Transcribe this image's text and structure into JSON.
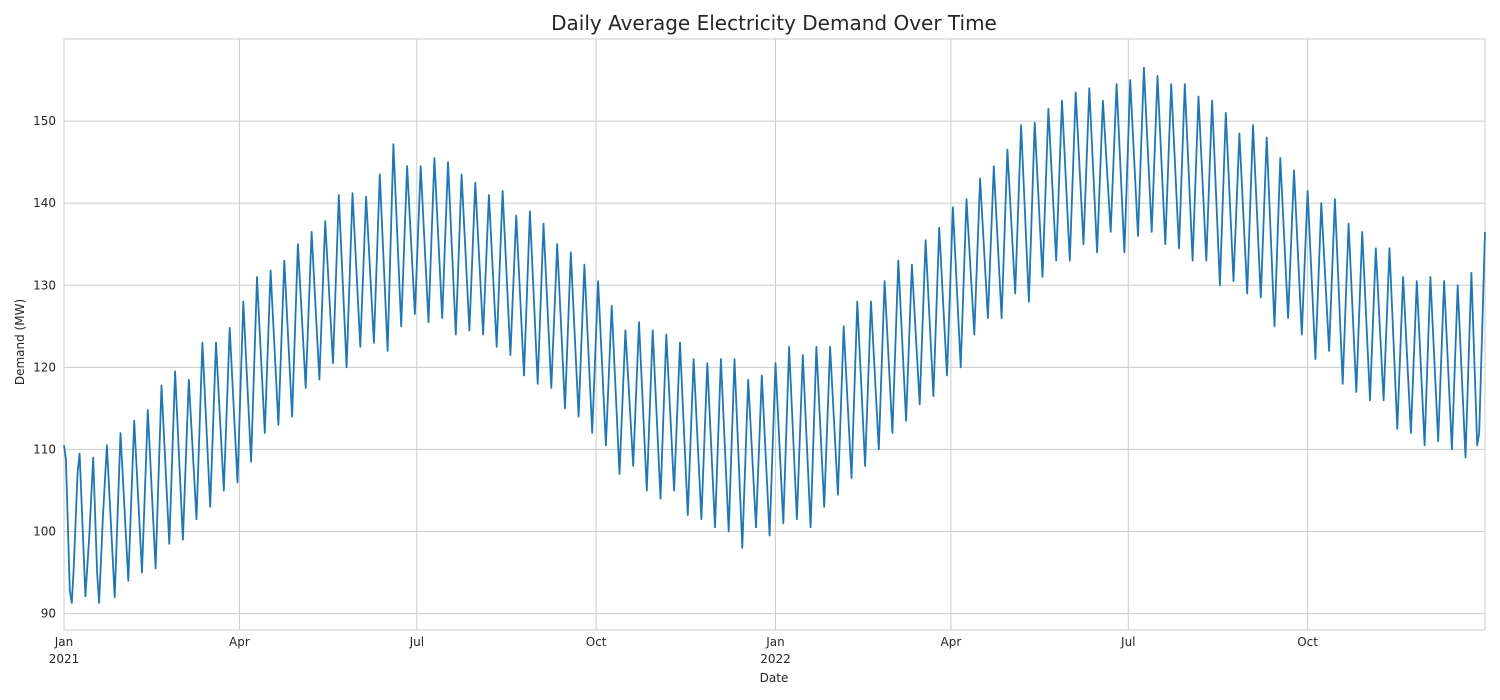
{
  "chart_data": {
    "type": "line",
    "title": "Daily Average Electricity Demand Over Time",
    "xlabel": "Date",
    "ylabel": "Demand (MW)",
    "ylim": [
      88,
      160
    ],
    "xlim": [
      "2021-01-01",
      "2022-12-31"
    ],
    "grid": true,
    "y_ticks": [
      90,
      100,
      110,
      120,
      130,
      140,
      150
    ],
    "x_ticks": [
      {
        "date": "2021-01-01",
        "label": "Jan",
        "sublabel": "2021"
      },
      {
        "date": "2021-04-01",
        "label": "Apr",
        "sublabel": ""
      },
      {
        "date": "2021-07-01",
        "label": "Jul",
        "sublabel": ""
      },
      {
        "date": "2021-10-01",
        "label": "Oct",
        "sublabel": ""
      },
      {
        "date": "2022-01-01",
        "label": "Jan",
        "sublabel": "2022"
      },
      {
        "date": "2022-04-01",
        "label": "Apr",
        "sublabel": ""
      },
      {
        "date": "2022-07-01",
        "label": "Jul",
        "sublabel": ""
      },
      {
        "date": "2022-10-01",
        "label": "Oct",
        "sublabel": ""
      }
    ],
    "series": [
      {
        "color": "#1f77b4",
        "points": [
          [
            "2021-01-01",
            110.5
          ],
          [
            "2021-01-02",
            108.8
          ],
          [
            "2021-01-04",
            92.8
          ],
          [
            "2021-01-05",
            91.3
          ],
          [
            "2021-01-06",
            95.5
          ],
          [
            "2021-01-08",
            107.2
          ],
          [
            "2021-01-09",
            109.5
          ],
          [
            "2021-01-12",
            92.1
          ],
          [
            "2021-01-14",
            99.5
          ],
          [
            "2021-01-16",
            109.0
          ],
          [
            "2021-01-18",
            95.0
          ],
          [
            "2021-01-19",
            91.3
          ],
          [
            "2021-01-21",
            102.0
          ],
          [
            "2021-01-23",
            110.5
          ],
          [
            "2021-01-27",
            92.0
          ],
          [
            "2021-01-30",
            112.0
          ],
          [
            "2021-02-03",
            94.0
          ],
          [
            "2021-02-06",
            113.5
          ],
          [
            "2021-02-10",
            95.0
          ],
          [
            "2021-02-13",
            114.8
          ],
          [
            "2021-02-17",
            95.5
          ],
          [
            "2021-02-20",
            117.8
          ],
          [
            "2021-02-24",
            98.5
          ],
          [
            "2021-02-27",
            119.5
          ],
          [
            "2021-03-03",
            99.0
          ],
          [
            "2021-03-06",
            118.5
          ],
          [
            "2021-03-10",
            101.5
          ],
          [
            "2021-03-13",
            123.0
          ],
          [
            "2021-03-17",
            103.0
          ],
          [
            "2021-03-20",
            123.0
          ],
          [
            "2021-03-24",
            105.0
          ],
          [
            "2021-03-27",
            124.8
          ],
          [
            "2021-03-31",
            106.0
          ],
          [
            "2021-04-03",
            128.0
          ],
          [
            "2021-04-07",
            108.5
          ],
          [
            "2021-04-10",
            131.0
          ],
          [
            "2021-04-14",
            112.0
          ],
          [
            "2021-04-17",
            131.8
          ],
          [
            "2021-04-21",
            113.0
          ],
          [
            "2021-04-24",
            133.0
          ],
          [
            "2021-04-28",
            114.0
          ],
          [
            "2021-05-01",
            135.0
          ],
          [
            "2021-05-05",
            117.5
          ],
          [
            "2021-05-08",
            136.5
          ],
          [
            "2021-05-12",
            118.5
          ],
          [
            "2021-05-15",
            137.8
          ],
          [
            "2021-05-19",
            120.5
          ],
          [
            "2021-05-22",
            141.0
          ],
          [
            "2021-05-26",
            120.0
          ],
          [
            "2021-05-29",
            141.2
          ],
          [
            "2021-06-02",
            122.5
          ],
          [
            "2021-06-05",
            140.8
          ],
          [
            "2021-06-09",
            123.0
          ],
          [
            "2021-06-12",
            143.5
          ],
          [
            "2021-06-16",
            122.0
          ],
          [
            "2021-06-19",
            147.2
          ],
          [
            "2021-06-23",
            125.0
          ],
          [
            "2021-06-26",
            144.5
          ],
          [
            "2021-06-30",
            126.5
          ],
          [
            "2021-07-03",
            144.5
          ],
          [
            "2021-07-07",
            125.5
          ],
          [
            "2021-07-10",
            145.5
          ],
          [
            "2021-07-14",
            126.0
          ],
          [
            "2021-07-17",
            145.0
          ],
          [
            "2021-07-21",
            124.0
          ],
          [
            "2021-07-24",
            143.5
          ],
          [
            "2021-07-28",
            124.5
          ],
          [
            "2021-07-31",
            142.5
          ],
          [
            "2021-08-04",
            124.0
          ],
          [
            "2021-08-07",
            141.0
          ],
          [
            "2021-08-11",
            122.5
          ],
          [
            "2021-08-14",
            141.5
          ],
          [
            "2021-08-18",
            121.5
          ],
          [
            "2021-08-21",
            138.5
          ],
          [
            "2021-08-25",
            119.0
          ],
          [
            "2021-08-28",
            139.0
          ],
          [
            "2021-09-01",
            118.0
          ],
          [
            "2021-09-04",
            137.5
          ],
          [
            "2021-09-08",
            117.5
          ],
          [
            "2021-09-11",
            135.0
          ],
          [
            "2021-09-15",
            115.0
          ],
          [
            "2021-09-18",
            134.0
          ],
          [
            "2021-09-22",
            114.0
          ],
          [
            "2021-09-25",
            132.5
          ],
          [
            "2021-09-29",
            112.0
          ],
          [
            "2021-10-02",
            130.5
          ],
          [
            "2021-10-06",
            110.5
          ],
          [
            "2021-10-09",
            127.5
          ],
          [
            "2021-10-13",
            107.0
          ],
          [
            "2021-10-16",
            124.5
          ],
          [
            "2021-10-20",
            108.0
          ],
          [
            "2021-10-23",
            125.5
          ],
          [
            "2021-10-27",
            105.0
          ],
          [
            "2021-10-30",
            124.5
          ],
          [
            "2021-11-03",
            104.0
          ],
          [
            "2021-11-06",
            124.0
          ],
          [
            "2021-11-10",
            105.0
          ],
          [
            "2021-11-13",
            123.0
          ],
          [
            "2021-11-17",
            102.0
          ],
          [
            "2021-11-20",
            121.0
          ],
          [
            "2021-11-24",
            101.5
          ],
          [
            "2021-11-27",
            120.5
          ],
          [
            "2021-12-01",
            100.5
          ],
          [
            "2021-12-04",
            121.0
          ],
          [
            "2021-12-08",
            100.0
          ],
          [
            "2021-12-11",
            121.0
          ],
          [
            "2021-12-15",
            98.0
          ],
          [
            "2021-12-18",
            118.5
          ],
          [
            "2021-12-22",
            100.5
          ],
          [
            "2021-12-25",
            119.0
          ],
          [
            "2021-12-29",
            99.5
          ],
          [
            "2022-01-01",
            120.5
          ],
          [
            "2022-01-05",
            101.0
          ],
          [
            "2022-01-08",
            122.5
          ],
          [
            "2022-01-12",
            101.5
          ],
          [
            "2022-01-15",
            121.5
          ],
          [
            "2022-01-19",
            100.5
          ],
          [
            "2022-01-22",
            122.5
          ],
          [
            "2022-01-26",
            103.0
          ],
          [
            "2022-01-29",
            122.5
          ],
          [
            "2022-02-02",
            104.5
          ],
          [
            "2022-02-05",
            125.0
          ],
          [
            "2022-02-09",
            106.5
          ],
          [
            "2022-02-12",
            128.0
          ],
          [
            "2022-02-16",
            108.0
          ],
          [
            "2022-02-19",
            128.0
          ],
          [
            "2022-02-23",
            110.0
          ],
          [
            "2022-02-26",
            130.5
          ],
          [
            "2022-03-02",
            112.0
          ],
          [
            "2022-03-05",
            133.0
          ],
          [
            "2022-03-09",
            113.5
          ],
          [
            "2022-03-12",
            132.5
          ],
          [
            "2022-03-16",
            115.5
          ],
          [
            "2022-03-19",
            135.5
          ],
          [
            "2022-03-23",
            116.5
          ],
          [
            "2022-03-26",
            137.0
          ],
          [
            "2022-03-30",
            119.0
          ],
          [
            "2022-04-02",
            139.5
          ],
          [
            "2022-04-06",
            120.0
          ],
          [
            "2022-04-09",
            140.5
          ],
          [
            "2022-04-13",
            124.0
          ],
          [
            "2022-04-16",
            143.0
          ],
          [
            "2022-04-20",
            126.0
          ],
          [
            "2022-04-23",
            144.5
          ],
          [
            "2022-04-27",
            126.0
          ],
          [
            "2022-04-30",
            146.5
          ],
          [
            "2022-05-04",
            129.0
          ],
          [
            "2022-05-07",
            149.5
          ],
          [
            "2022-05-11",
            128.0
          ],
          [
            "2022-05-14",
            149.8
          ],
          [
            "2022-05-18",
            131.0
          ],
          [
            "2022-05-21",
            151.5
          ],
          [
            "2022-05-25",
            133.0
          ],
          [
            "2022-05-28",
            152.5
          ],
          [
            "2022-06-01",
            133.0
          ],
          [
            "2022-06-04",
            153.5
          ],
          [
            "2022-06-08",
            135.0
          ],
          [
            "2022-06-11",
            154.0
          ],
          [
            "2022-06-15",
            134.0
          ],
          [
            "2022-06-18",
            152.5
          ],
          [
            "2022-06-22",
            136.5
          ],
          [
            "2022-06-25",
            154.5
          ],
          [
            "2022-06-29",
            134.0
          ],
          [
            "2022-07-02",
            155.0
          ],
          [
            "2022-07-06",
            136.0
          ],
          [
            "2022-07-09",
            156.5
          ],
          [
            "2022-07-13",
            136.5
          ],
          [
            "2022-07-16",
            155.5
          ],
          [
            "2022-07-20",
            135.0
          ],
          [
            "2022-07-23",
            154.5
          ],
          [
            "2022-07-27",
            134.5
          ],
          [
            "2022-07-30",
            154.5
          ],
          [
            "2022-08-03",
            133.0
          ],
          [
            "2022-08-06",
            153.0
          ],
          [
            "2022-08-10",
            133.0
          ],
          [
            "2022-08-13",
            152.5
          ],
          [
            "2022-08-17",
            130.0
          ],
          [
            "2022-08-20",
            151.0
          ],
          [
            "2022-08-24",
            130.5
          ],
          [
            "2022-08-27",
            148.5
          ],
          [
            "2022-08-31",
            129.0
          ],
          [
            "2022-09-03",
            149.5
          ],
          [
            "2022-09-07",
            128.5
          ],
          [
            "2022-09-10",
            148.0
          ],
          [
            "2022-09-14",
            125.0
          ],
          [
            "2022-09-17",
            145.5
          ],
          [
            "2022-09-21",
            126.0
          ],
          [
            "2022-09-24",
            144.0
          ],
          [
            "2022-09-28",
            124.0
          ],
          [
            "2022-10-01",
            141.5
          ],
          [
            "2022-10-05",
            121.0
          ],
          [
            "2022-10-08",
            140.0
          ],
          [
            "2022-10-12",
            122.0
          ],
          [
            "2022-10-15",
            140.5
          ],
          [
            "2022-10-19",
            118.0
          ],
          [
            "2022-10-22",
            137.5
          ],
          [
            "2022-10-26",
            117.0
          ],
          [
            "2022-10-29",
            136.5
          ],
          [
            "2022-11-02",
            116.0
          ],
          [
            "2022-11-05",
            134.5
          ],
          [
            "2022-11-09",
            116.0
          ],
          [
            "2022-11-12",
            134.5
          ],
          [
            "2022-11-16",
            112.5
          ],
          [
            "2022-11-19",
            131.0
          ],
          [
            "2022-11-23",
            112.0
          ],
          [
            "2022-11-26",
            130.5
          ],
          [
            "2022-11-30",
            110.5
          ],
          [
            "2022-12-03",
            131.0
          ],
          [
            "2022-12-07",
            111.0
          ],
          [
            "2022-12-10",
            130.5
          ],
          [
            "2022-12-14",
            110.0
          ],
          [
            "2022-12-17",
            130.0
          ],
          [
            "2022-12-21",
            109.0
          ],
          [
            "2022-12-24",
            131.5
          ],
          [
            "2022-12-27",
            110.5
          ],
          [
            "2022-12-28",
            112.0
          ],
          [
            "2022-12-31",
            136.5
          ]
        ]
      }
    ]
  }
}
